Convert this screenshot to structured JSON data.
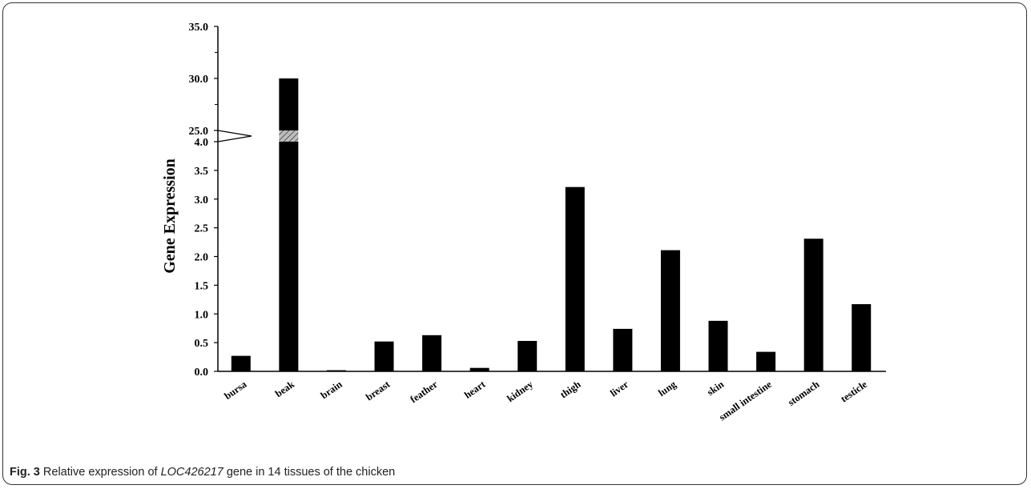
{
  "chart_data": {
    "type": "bar",
    "ylabel": "Gene Expression",
    "xlabel": "",
    "categories": [
      "bursa",
      "beak",
      "brain",
      "breast",
      "feather",
      "heart",
      "kidney",
      "thigh",
      "liver",
      "lung",
      "skin",
      "small intestine",
      "stomach",
      "testicle"
    ],
    "values": [
      0.27,
      30.0,
      0.02,
      0.52,
      0.63,
      0.06,
      0.53,
      3.21,
      0.74,
      2.11,
      0.88,
      0.34,
      2.31,
      1.17
    ],
    "ylim": [
      0,
      35
    ],
    "axis_break": {
      "lower_max": 4.0,
      "upper_min": 25.0
    },
    "lower_ticks": [
      "0.0",
      "0.5",
      "1.0",
      "1.5",
      "2.0",
      "2.5",
      "3.0",
      "3.5",
      "4.0"
    ],
    "upper_ticks": [
      "25.0",
      "30.0",
      "35.0"
    ],
    "bar_color": "#000000",
    "grid": false,
    "legend": "none"
  },
  "caption": {
    "fig_label": "Fig. 3",
    "text_before": " Relative expression of ",
    "gene": "LOC426217",
    "text_after": " gene in 14 tissues of the chicken"
  }
}
